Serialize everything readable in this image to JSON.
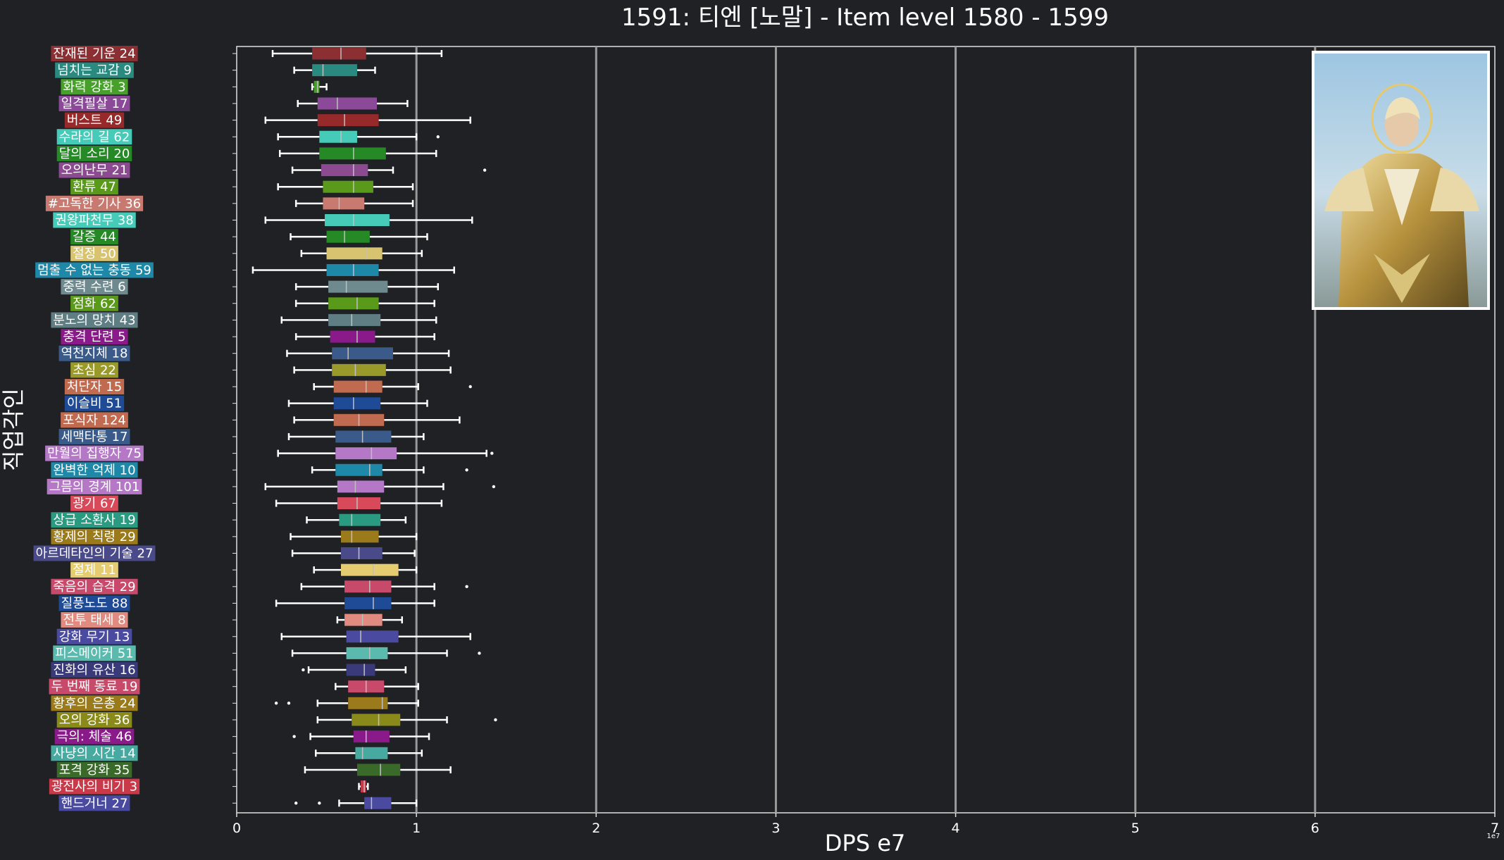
{
  "chart_data": {
    "type": "boxplot",
    "title": "1591: 티엔 [노말] - Item level 1580 - 1599",
    "xlabel": "DPS e7",
    "ylabel": "직업각인",
    "x_multiplier_label": "1e7",
    "xlim": [
      0,
      7
    ],
    "xticks": [
      "0",
      "1",
      "2",
      "3",
      "4",
      "5",
      "6",
      "7"
    ],
    "grid": "vertical",
    "inset_image": "character-portrait",
    "categories": [
      {
        "label": "잔재된 기운 24",
        "color": "#8b2f32",
        "whisker_low": 0.2,
        "q1": 0.42,
        "median": 0.58,
        "q3": 0.72,
        "whisker_high": 1.14,
        "outliers": []
      },
      {
        "label": "넘치는 교감 9",
        "color": "#2a8a80",
        "whisker_low": 0.32,
        "q1": 0.42,
        "median": 0.48,
        "q3": 0.67,
        "whisker_high": 0.77,
        "outliers": []
      },
      {
        "label": "화력 강화 3",
        "color": "#46a02a",
        "whisker_low": 0.42,
        "q1": 0.43,
        "median": 0.45,
        "q3": 0.46,
        "whisker_high": 0.5,
        "outliers": []
      },
      {
        "label": "일격필살 17",
        "color": "#8a4a98",
        "whisker_low": 0.34,
        "q1": 0.45,
        "median": 0.56,
        "q3": 0.78,
        "whisker_high": 0.95,
        "outliers": []
      },
      {
        "label": "버스트 49",
        "color": "#962a2a",
        "whisker_low": 0.16,
        "q1": 0.45,
        "median": 0.6,
        "q3": 0.79,
        "whisker_high": 1.3,
        "outliers": []
      },
      {
        "label": "수라의 길 62",
        "color": "#46cbb9",
        "whisker_low": 0.23,
        "q1": 0.46,
        "median": 0.58,
        "q3": 0.67,
        "whisker_high": 1.0,
        "outliers": [
          1.12
        ]
      },
      {
        "label": "달의 소리 20",
        "color": "#258a25",
        "whisker_low": 0.24,
        "q1": 0.46,
        "median": 0.65,
        "q3": 0.83,
        "whisker_high": 1.11,
        "outliers": []
      },
      {
        "label": "오의난무 21",
        "color": "#8c4a90",
        "whisker_low": 0.31,
        "q1": 0.47,
        "median": 0.65,
        "q3": 0.73,
        "whisker_high": 0.87,
        "outliers": [
          1.38
        ]
      },
      {
        "label": "환류 47",
        "color": "#5a9a1a",
        "whisker_low": 0.23,
        "q1": 0.48,
        "median": 0.65,
        "q3": 0.76,
        "whisker_high": 0.98,
        "outliers": []
      },
      {
        "label": "#고독한 기사 36",
        "color": "#c87a70",
        "whisker_low": 0.33,
        "q1": 0.48,
        "median": 0.57,
        "q3": 0.71,
        "whisker_high": 0.98,
        "outliers": []
      },
      {
        "label": "권왕파천무 38",
        "color": "#46cbb9",
        "whisker_low": 0.16,
        "q1": 0.49,
        "median": 0.65,
        "q3": 0.85,
        "whisker_high": 1.31,
        "outliers": []
      },
      {
        "label": "갈증 44",
        "color": "#258a25",
        "whisker_low": 0.3,
        "q1": 0.5,
        "median": 0.6,
        "q3": 0.74,
        "whisker_high": 1.06,
        "outliers": []
      },
      {
        "label": "절정 50",
        "color": "#d8c470",
        "whisker_low": 0.36,
        "q1": 0.5,
        "median": 0.72,
        "q3": 0.81,
        "whisker_high": 1.03,
        "outliers": []
      },
      {
        "label": "멈출 수 없는 충동 59",
        "color": "#1e88a8",
        "whisker_low": 0.09,
        "q1": 0.5,
        "median": 0.65,
        "q3": 0.79,
        "whisker_high": 1.21,
        "outliers": []
      },
      {
        "label": "중력 수련 6",
        "color": "#6e8a8e",
        "whisker_low": 0.33,
        "q1": 0.51,
        "median": 0.61,
        "q3": 0.84,
        "whisker_high": 1.12,
        "outliers": []
      },
      {
        "label": "점화 62",
        "color": "#5a9a1a",
        "whisker_low": 0.33,
        "q1": 0.51,
        "median": 0.67,
        "q3": 0.79,
        "whisker_high": 1.1,
        "outliers": []
      },
      {
        "label": "분노의 망치 43",
        "color": "#5f7e84",
        "whisker_low": 0.25,
        "q1": 0.51,
        "median": 0.64,
        "q3": 0.8,
        "whisker_high": 1.11,
        "outliers": []
      },
      {
        "label": "충격 단련 5",
        "color": "#8a1a8a",
        "whisker_low": 0.33,
        "q1": 0.52,
        "median": 0.67,
        "q3": 0.77,
        "whisker_high": 1.1,
        "outliers": []
      },
      {
        "label": "역천지체 18",
        "color": "#3a5a8a",
        "whisker_low": 0.28,
        "q1": 0.53,
        "median": 0.62,
        "q3": 0.87,
        "whisker_high": 1.18,
        "outliers": []
      },
      {
        "label": "초심 22",
        "color": "#9a9a2a",
        "whisker_low": 0.32,
        "q1": 0.53,
        "median": 0.66,
        "q3": 0.83,
        "whisker_high": 1.19,
        "outliers": []
      },
      {
        "label": "처단자 15",
        "color": "#c06a50",
        "whisker_low": 0.43,
        "q1": 0.54,
        "median": 0.72,
        "q3": 0.81,
        "whisker_high": 1.01,
        "outliers": [
          1.3
        ]
      },
      {
        "label": "이슬비 51",
        "color": "#1e4a96",
        "whisker_low": 0.29,
        "q1": 0.54,
        "median": 0.65,
        "q3": 0.8,
        "whisker_high": 1.06,
        "outliers": []
      },
      {
        "label": "포식자 124",
        "color": "#c06a50",
        "whisker_low": 0.32,
        "q1": 0.54,
        "median": 0.68,
        "q3": 0.82,
        "whisker_high": 1.24,
        "outliers": []
      },
      {
        "label": "세맥타통 17",
        "color": "#3a5a8a",
        "whisker_low": 0.29,
        "q1": 0.55,
        "median": 0.7,
        "q3": 0.86,
        "whisker_high": 1.04,
        "outliers": []
      },
      {
        "label": "만월의 집행자 75",
        "color": "#b478c6",
        "whisker_low": 0.23,
        "q1": 0.55,
        "median": 0.75,
        "q3": 0.89,
        "whisker_high": 1.39,
        "outliers": [
          1.42
        ]
      },
      {
        "label": "완벽한 억제 10",
        "color": "#1e88a8",
        "whisker_low": 0.42,
        "q1": 0.55,
        "median": 0.74,
        "q3": 0.81,
        "whisker_high": 1.04,
        "outliers": [
          1.28
        ]
      },
      {
        "label": "그믐의 경계 101",
        "color": "#b478c6",
        "whisker_low": 0.16,
        "q1": 0.56,
        "median": 0.66,
        "q3": 0.82,
        "whisker_high": 1.15,
        "outliers": [
          1.43
        ]
      },
      {
        "label": "광기 67",
        "color": "#d84a5a",
        "whisker_low": 0.22,
        "q1": 0.56,
        "median": 0.67,
        "q3": 0.8,
        "whisker_high": 1.14,
        "outliers": []
      },
      {
        "label": "상급 소환사 19",
        "color": "#2a9a80",
        "whisker_low": 0.39,
        "q1": 0.57,
        "median": 0.64,
        "q3": 0.8,
        "whisker_high": 0.94,
        "outliers": []
      },
      {
        "label": "황제의 칙령 29",
        "color": "#9a7a1a",
        "whisker_low": 0.3,
        "q1": 0.58,
        "median": 0.64,
        "q3": 0.79,
        "whisker_high": 1.0,
        "outliers": []
      },
      {
        "label": "아르데타인의 기술 27",
        "color": "#4a4a8a",
        "whisker_low": 0.31,
        "q1": 0.58,
        "median": 0.68,
        "q3": 0.81,
        "whisker_high": 0.99,
        "outliers": []
      },
      {
        "label": "절제 11",
        "color": "#e6cc70",
        "whisker_low": 0.43,
        "q1": 0.58,
        "median": 0.76,
        "q3": 0.9,
        "whisker_high": 1.0,
        "outliers": []
      },
      {
        "label": "죽음의 습격 29",
        "color": "#c84a6a",
        "whisker_low": 0.36,
        "q1": 0.6,
        "median": 0.74,
        "q3": 0.86,
        "whisker_high": 1.1,
        "outliers": [
          1.28
        ]
      },
      {
        "label": "질풍노도 88",
        "color": "#1e4a96",
        "whisker_low": 0.22,
        "q1": 0.6,
        "median": 0.76,
        "q3": 0.86,
        "whisker_high": 1.1,
        "outliers": []
      },
      {
        "label": "전투 태세 8",
        "color": "#e08a80",
        "whisker_low": 0.56,
        "q1": 0.6,
        "median": 0.7,
        "q3": 0.81,
        "whisker_high": 0.92,
        "outliers": []
      },
      {
        "label": "강화 무기 13",
        "color": "#4a4aa0",
        "whisker_low": 0.25,
        "q1": 0.61,
        "median": 0.69,
        "q3": 0.9,
        "whisker_high": 1.3,
        "outliers": []
      },
      {
        "label": "피스메이커 51",
        "color": "#5abaae",
        "whisker_low": 0.31,
        "q1": 0.61,
        "median": 0.74,
        "q3": 0.84,
        "whisker_high": 1.17,
        "outliers": [
          1.35
        ]
      },
      {
        "label": "진화의 유산 16",
        "color": "#3a3a7a",
        "whisker_low": 0.4,
        "q1": 0.61,
        "median": 0.71,
        "q3": 0.77,
        "whisker_high": 0.94,
        "outliers": [
          0.37
        ]
      },
      {
        "label": "두 번째 동료 19",
        "color": "#c84a6a",
        "whisker_low": 0.55,
        "q1": 0.62,
        "median": 0.72,
        "q3": 0.82,
        "whisker_high": 1.01,
        "outliers": []
      },
      {
        "label": "황후의 은총 24",
        "color": "#9a7a1a",
        "whisker_low": 0.45,
        "q1": 0.62,
        "median": 0.81,
        "q3": 0.84,
        "whisker_high": 1.01,
        "outliers": [
          0.22,
          0.29
        ]
      },
      {
        "label": "오의 강화 36",
        "color": "#8a8a1a",
        "whisker_low": 0.45,
        "q1": 0.64,
        "median": 0.79,
        "q3": 0.91,
        "whisker_high": 1.17,
        "outliers": [
          1.44
        ]
      },
      {
        "label": "극의: 체술 46",
        "color": "#8a1a8a",
        "whisker_low": 0.41,
        "q1": 0.65,
        "median": 0.72,
        "q3": 0.85,
        "whisker_high": 1.07,
        "outliers": [
          0.32
        ]
      },
      {
        "label": "사냥의 시간 14",
        "color": "#46aaa0",
        "whisker_low": 0.44,
        "q1": 0.66,
        "median": 0.7,
        "q3": 0.84,
        "whisker_high": 1.03,
        "outliers": []
      },
      {
        "label": "포격 강화 35",
        "color": "#3a6a2a",
        "whisker_low": 0.38,
        "q1": 0.67,
        "median": 0.8,
        "q3": 0.91,
        "whisker_high": 1.19,
        "outliers": []
      },
      {
        "label": "광전사의 비기 3",
        "color": "#c83a4a",
        "whisker_low": 0.68,
        "q1": 0.69,
        "median": 0.71,
        "q3": 0.72,
        "whisker_high": 0.73,
        "outliers": []
      },
      {
        "label": "핸드거너 27",
        "color": "#4a4aa0",
        "whisker_low": 0.57,
        "q1": 0.71,
        "median": 0.75,
        "q3": 0.86,
        "whisker_high": 1.0,
        "outliers": [
          0.33,
          0.46
        ]
      }
    ]
  }
}
